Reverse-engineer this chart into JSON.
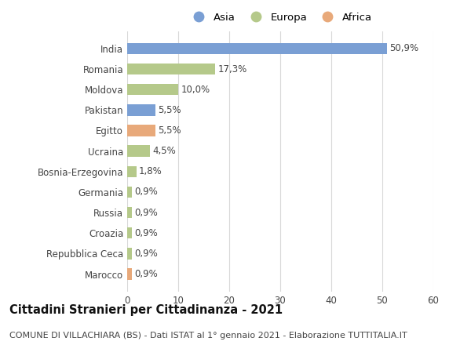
{
  "categories": [
    "India",
    "Romania",
    "Moldova",
    "Pakistan",
    "Egitto",
    "Ucraina",
    "Bosnia-Erzegovina",
    "Germania",
    "Russia",
    "Croazia",
    "Repubblica Ceca",
    "Marocco"
  ],
  "values": [
    50.9,
    17.3,
    10.0,
    5.5,
    5.5,
    4.5,
    1.8,
    0.9,
    0.9,
    0.9,
    0.9,
    0.9
  ],
  "labels": [
    "50,9%",
    "17,3%",
    "10,0%",
    "5,5%",
    "5,5%",
    "4,5%",
    "1,8%",
    "0,9%",
    "0,9%",
    "0,9%",
    "0,9%",
    "0,9%"
  ],
  "colors": [
    "#7a9fd4",
    "#b5c98a",
    "#b5c98a",
    "#7a9fd4",
    "#e8a97a",
    "#b5c98a",
    "#b5c98a",
    "#b5c98a",
    "#b5c98a",
    "#b5c98a",
    "#b5c98a",
    "#e8a97a"
  ],
  "legend_labels": [
    "Asia",
    "Europa",
    "Africa"
  ],
  "legend_colors": [
    "#7a9fd4",
    "#b5c98a",
    "#e8a97a"
  ],
  "xlim": [
    0,
    60
  ],
  "xticks": [
    0,
    10,
    20,
    30,
    40,
    50,
    60
  ],
  "title": "Cittadini Stranieri per Cittadinanza - 2021",
  "subtitle": "COMUNE DI VILLACHIARA (BS) - Dati ISTAT al 1° gennaio 2021 - Elaborazione TUTTITALIA.IT",
  "background_color": "#ffffff",
  "bar_height": 0.55,
  "label_fontsize": 8.5,
  "title_fontsize": 10.5,
  "subtitle_fontsize": 8,
  "ytick_fontsize": 8.5,
  "xtick_fontsize": 8.5
}
